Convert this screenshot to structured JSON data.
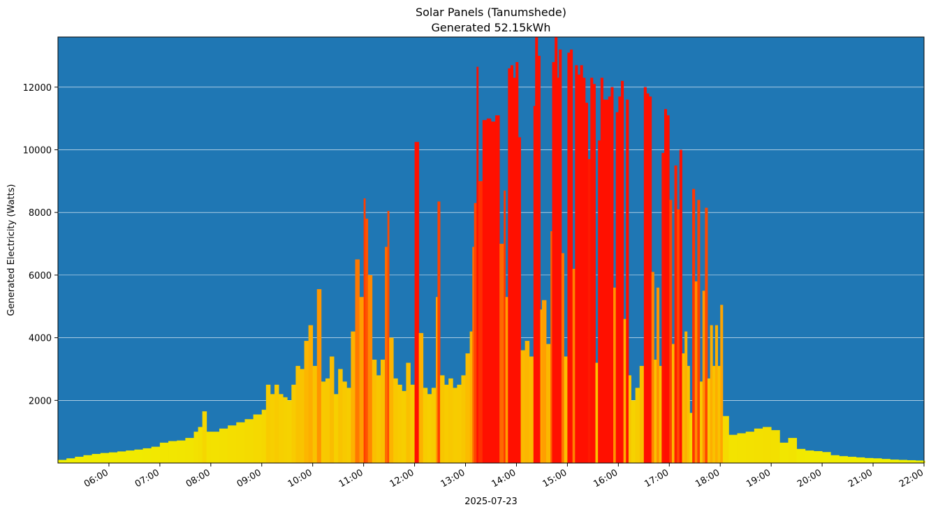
{
  "chart_data": {
    "type": "bar",
    "title": "Solar Panels (Tanumshede)",
    "subtitle": "Generated 52.15kWh",
    "xlabel": "2025-07-23",
    "ylabel": "Generated Electricity (Watts)",
    "xlim": [
      "05:00",
      "22:00"
    ],
    "ylim": [
      0,
      13600
    ],
    "grid": "horizontal",
    "background_color": "#1f77b4",
    "grid_color": "#ffffff",
    "color_scale": {
      "low": "#f0f000",
      "mid": "#ffa500",
      "high": "#ff1000"
    },
    "x_ticks": [
      "06:00",
      "07:00",
      "08:00",
      "09:00",
      "10:00",
      "11:00",
      "12:00",
      "13:00",
      "14:00",
      "15:00",
      "16:00",
      "17:00",
      "18:00",
      "19:00",
      "20:00",
      "21:00",
      "22:00"
    ],
    "y_ticks": [
      2000,
      4000,
      6000,
      8000,
      10000,
      12000
    ],
    "points": [
      [
        "05:00",
        100
      ],
      [
        "05:10",
        150
      ],
      [
        "05:20",
        200
      ],
      [
        "05:30",
        250
      ],
      [
        "05:40",
        290
      ],
      [
        "05:50",
        320
      ],
      [
        "06:00",
        340
      ],
      [
        "06:10",
        370
      ],
      [
        "06:20",
        400
      ],
      [
        "06:30",
        430
      ],
      [
        "06:40",
        470
      ],
      [
        "06:50",
        520
      ],
      [
        "07:00",
        650
      ],
      [
        "07:10",
        700
      ],
      [
        "07:20",
        720
      ],
      [
        "07:30",
        800
      ],
      [
        "07:40",
        1000
      ],
      [
        "07:45",
        1150
      ],
      [
        "07:50",
        1650
      ],
      [
        "07:55",
        1000
      ],
      [
        "08:00",
        1000
      ],
      [
        "08:10",
        1100
      ],
      [
        "08:20",
        1200
      ],
      [
        "08:30",
        1300
      ],
      [
        "08:40",
        1400
      ],
      [
        "08:50",
        1550
      ],
      [
        "09:00",
        1700
      ],
      [
        "09:05",
        2500
      ],
      [
        "09:10",
        2200
      ],
      [
        "09:15",
        2500
      ],
      [
        "09:20",
        2200
      ],
      [
        "09:25",
        2100
      ],
      [
        "09:30",
        2000
      ],
      [
        "09:35",
        2500
      ],
      [
        "09:40",
        3100
      ],
      [
        "09:45",
        3000
      ],
      [
        "09:50",
        3900
      ],
      [
        "09:55",
        4400
      ],
      [
        "10:00",
        3100
      ],
      [
        "10:05",
        5550
      ],
      [
        "10:10",
        2600
      ],
      [
        "10:15",
        2700
      ],
      [
        "10:20",
        3400
      ],
      [
        "10:25",
        2200
      ],
      [
        "10:30",
        3000
      ],
      [
        "10:35",
        2600
      ],
      [
        "10:40",
        2400
      ],
      [
        "10:45",
        4200
      ],
      [
        "10:50",
        6500
      ],
      [
        "10:55",
        5300
      ],
      [
        "11:00",
        8450
      ],
      [
        "11:02",
        7800
      ],
      [
        "11:05",
        6000
      ],
      [
        "11:10",
        3300
      ],
      [
        "11:15",
        2800
      ],
      [
        "11:20",
        3300
      ],
      [
        "11:25",
        6900
      ],
      [
        "11:28",
        8050
      ],
      [
        "11:30",
        4000
      ],
      [
        "11:35",
        2700
      ],
      [
        "11:40",
        2500
      ],
      [
        "11:45",
        2300
      ],
      [
        "11:50",
        3200
      ],
      [
        "11:55",
        2500
      ],
      [
        "12:00",
        10250
      ],
      [
        "12:05",
        4150
      ],
      [
        "12:10",
        2400
      ],
      [
        "12:15",
        2200
      ],
      [
        "12:20",
        2400
      ],
      [
        "12:25",
        5300
      ],
      [
        "12:27",
        8350
      ],
      [
        "12:30",
        2800
      ],
      [
        "12:35",
        2500
      ],
      [
        "12:40",
        2700
      ],
      [
        "12:45",
        2400
      ],
      [
        "12:50",
        2500
      ],
      [
        "12:55",
        2800
      ],
      [
        "13:00",
        3500
      ],
      [
        "13:05",
        4200
      ],
      [
        "13:08",
        6900
      ],
      [
        "13:10",
        8300
      ],
      [
        "13:13",
        12650
      ],
      [
        "13:15",
        9000
      ],
      [
        "13:20",
        10950
      ],
      [
        "13:25",
        11000
      ],
      [
        "13:30",
        10900
      ],
      [
        "13:35",
        11100
      ],
      [
        "13:40",
        7000
      ],
      [
        "13:45",
        8700
      ],
      [
        "13:47",
        5300
      ],
      [
        "13:50",
        12600
      ],
      [
        "13:53",
        12700
      ],
      [
        "13:56",
        12300
      ],
      [
        "13:59",
        12800
      ],
      [
        "14:02",
        10400
      ],
      [
        "14:05",
        3600
      ],
      [
        "14:10",
        3900
      ],
      [
        "14:15",
        3400
      ],
      [
        "14:20",
        11400
      ],
      [
        "14:22",
        13600
      ],
      [
        "14:25",
        13000
      ],
      [
        "14:28",
        4900
      ],
      [
        "14:30",
        5200
      ],
      [
        "14:35",
        3800
      ],
      [
        "14:40",
        7400
      ],
      [
        "14:42",
        12800
      ],
      [
        "14:45",
        13600
      ],
      [
        "14:48",
        12300
      ],
      [
        "14:50",
        13200
      ],
      [
        "14:53",
        6700
      ],
      [
        "14:56",
        3400
      ],
      [
        "15:00",
        13100
      ],
      [
        "15:03",
        13200
      ],
      [
        "15:06",
        6200
      ],
      [
        "15:09",
        12700
      ],
      [
        "15:12",
        12400
      ],
      [
        "15:15",
        12700
      ],
      [
        "15:18",
        12300
      ],
      [
        "15:21",
        11500
      ],
      [
        "15:24",
        9700
      ],
      [
        "15:27",
        12300
      ],
      [
        "15:30",
        12100
      ],
      [
        "15:33",
        3200
      ],
      [
        "15:36",
        10300
      ],
      [
        "15:39",
        12300
      ],
      [
        "15:42",
        11600
      ],
      [
        "15:45",
        11600
      ],
      [
        "15:48",
        11700
      ],
      [
        "15:51",
        12000
      ],
      [
        "15:54",
        5600
      ],
      [
        "15:57",
        11200
      ],
      [
        "16:00",
        11700
      ],
      [
        "16:03",
        12200
      ],
      [
        "16:06",
        4600
      ],
      [
        "16:09",
        11600
      ],
      [
        "16:12",
        2800
      ],
      [
        "16:15",
        2000
      ],
      [
        "16:20",
        2400
      ],
      [
        "16:25",
        3100
      ],
      [
        "16:30",
        12000
      ],
      [
        "16:33",
        11800
      ],
      [
        "16:36",
        11700
      ],
      [
        "16:39",
        6100
      ],
      [
        "16:42",
        3300
      ],
      [
        "16:45",
        5600
      ],
      [
        "16:48",
        3100
      ],
      [
        "16:51",
        9900
      ],
      [
        "16:54",
        11300
      ],
      [
        "16:57",
        11100
      ],
      [
        "17:00",
        8400
      ],
      [
        "17:03",
        3800
      ],
      [
        "17:06",
        9500
      ],
      [
        "17:09",
        8100
      ],
      [
        "17:12",
        10000
      ],
      [
        "17:15",
        3500
      ],
      [
        "17:18",
        4200
      ],
      [
        "17:21",
        3100
      ],
      [
        "17:24",
        1600
      ],
      [
        "17:27",
        8750
      ],
      [
        "17:30",
        5800
      ],
      [
        "17:33",
        8400
      ],
      [
        "17:36",
        2600
      ],
      [
        "17:39",
        5500
      ],
      [
        "17:42",
        8150
      ],
      [
        "17:45",
        2700
      ],
      [
        "17:48",
        4400
      ],
      [
        "17:51",
        3100
      ],
      [
        "17:54",
        4400
      ],
      [
        "17:57",
        3100
      ],
      [
        "18:00",
        5050
      ],
      [
        "18:03",
        1500
      ],
      [
        "18:10",
        900
      ],
      [
        "18:20",
        950
      ],
      [
        "18:30",
        1000
      ],
      [
        "18:40",
        1100
      ],
      [
        "18:50",
        1150
      ],
      [
        "19:00",
        1050
      ],
      [
        "19:10",
        650
      ],
      [
        "19:20",
        800
      ],
      [
        "19:30",
        450
      ],
      [
        "19:40",
        400
      ],
      [
        "19:50",
        380
      ],
      [
        "20:00",
        350
      ],
      [
        "20:10",
        250
      ],
      [
        "20:20",
        220
      ],
      [
        "20:30",
        200
      ],
      [
        "20:40",
        180
      ],
      [
        "20:50",
        160
      ],
      [
        "21:00",
        150
      ],
      [
        "21:10",
        130
      ],
      [
        "21:20",
        110
      ],
      [
        "21:30",
        100
      ],
      [
        "21:40",
        90
      ],
      [
        "21:50",
        80
      ],
      [
        "22:00",
        70
      ]
    ]
  }
}
